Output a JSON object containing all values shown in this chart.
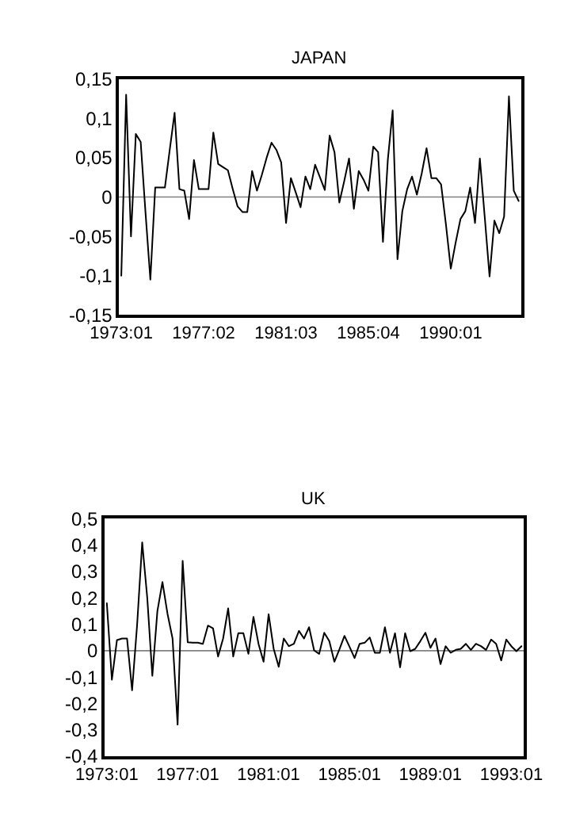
{
  "chart_data": [
    {
      "type": "line",
      "title": "JAPAN",
      "categories": [
        "1973:01",
        null,
        null,
        null,
        null,
        null,
        null,
        null,
        null,
        null,
        null,
        null,
        null,
        null,
        null,
        null,
        null,
        "1977:02",
        null,
        null,
        null,
        null,
        null,
        null,
        null,
        null,
        null,
        null,
        null,
        null,
        null,
        null,
        null,
        null,
        "1981:03",
        null,
        null,
        null,
        null,
        null,
        null,
        null,
        null,
        null,
        null,
        null,
        null,
        null,
        null,
        null,
        null,
        "1985:04",
        null,
        null,
        null,
        null,
        null,
        null,
        null,
        null,
        null,
        null,
        null,
        null,
        null,
        null,
        null,
        null,
        "1990:01",
        null,
        null,
        null,
        null,
        null,
        null,
        null,
        null,
        null,
        null,
        null,
        null,
        null,
        null
      ],
      "series": [
        {
          "color": "#000000",
          "values": [
            -0.1,
            0.13,
            -0.05,
            0.08,
            0.07,
            -0.02,
            -0.105,
            0.012,
            0.012,
            0.012,
            0.06,
            0.107,
            0.01,
            0.008,
            -0.028,
            0.047,
            0.01,
            0.01,
            0.01,
            0.082,
            0.042,
            0.038,
            0.034,
            0.01,
            -0.012,
            -0.019,
            -0.019,
            0.033,
            0.008,
            0.028,
            0.05,
            0.069,
            0.06,
            0.044,
            -0.033,
            0.024,
            0.006,
            -0.013,
            0.026,
            0.01,
            0.041,
            0.025,
            0.009,
            0.078,
            0.057,
            -0.007,
            0.02,
            0.049,
            -0.015,
            0.033,
            0.022,
            0.008,
            0.064,
            0.057,
            -0.057,
            0.047,
            0.11,
            -0.079,
            -0.018,
            0.01,
            0.026,
            0.003,
            0.03,
            0.062,
            0.024,
            0.024,
            0.016,
            -0.035,
            -0.091,
            -0.058,
            -0.028,
            -0.018,
            0.012,
            -0.033,
            0.049,
            -0.025,
            -0.101,
            -0.03,
            -0.046,
            -0.025,
            0.128,
            0.008,
            -0.005
          ]
        }
      ],
      "ylim": [
        -0.15,
        0.15
      ],
      "yticks": [
        {
          "value": -0.15,
          "label": "-0,15"
        },
        {
          "value": -0.1,
          "label": "-0,1"
        },
        {
          "value": -0.05,
          "label": "-0,05"
        },
        {
          "value": 0,
          "label": "0"
        },
        {
          "value": 0.05,
          "label": "0,05"
        },
        {
          "value": 0.1,
          "label": "0,1"
        },
        {
          "value": 0.15,
          "label": "0,15"
        }
      ],
      "ref_lines": [
        {
          "axis": "y",
          "value": 0,
          "color": "#808080"
        }
      ]
    },
    {
      "type": "line",
      "title": "UK",
      "categories": [
        "1973:01",
        null,
        null,
        null,
        null,
        null,
        null,
        null,
        null,
        null,
        null,
        null,
        null,
        null,
        null,
        null,
        "1977:01",
        null,
        null,
        null,
        null,
        null,
        null,
        null,
        null,
        null,
        null,
        null,
        null,
        null,
        null,
        null,
        "1981:01",
        null,
        null,
        null,
        null,
        null,
        null,
        null,
        null,
        null,
        null,
        null,
        null,
        null,
        null,
        null,
        "1985:01",
        null,
        null,
        null,
        null,
        null,
        null,
        null,
        null,
        null,
        null,
        null,
        null,
        null,
        null,
        null,
        "1989:01",
        null,
        null,
        null,
        null,
        null,
        null,
        null,
        null,
        null,
        null,
        null,
        null,
        null,
        null,
        null,
        "1993:01",
        null,
        null
      ],
      "series": [
        {
          "color": "#000000",
          "values": [
            0.18,
            -0.11,
            0.04,
            0.046,
            0.046,
            -0.15,
            0.1,
            0.41,
            0.2,
            -0.095,
            0.15,
            0.26,
            0.14,
            0.046,
            -0.28,
            0.34,
            0.032,
            0.03,
            0.03,
            0.026,
            0.095,
            0.085,
            -0.022,
            0.046,
            0.16,
            -0.022,
            0.066,
            0.066,
            -0.012,
            0.128,
            0.026,
            -0.042,
            0.138,
            0.007,
            -0.061,
            0.046,
            0.017,
            0.026,
            0.075,
            0.046,
            0.089,
            0.001,
            -0.012,
            0.068,
            0.036,
            -0.042,
            0.005,
            0.056,
            0.015,
            -0.028,
            0.026,
            0.03,
            0.05,
            -0.008,
            -0.008,
            0.089,
            -0.008,
            0.066,
            -0.063,
            0.066,
            -0.002,
            0.007,
            0.036,
            0.068,
            0.011,
            0.046,
            -0.051,
            0.017,
            -0.008,
            0.003,
            0.007,
            0.026,
            0.003,
            0.026,
            0.017,
            0.003,
            0.042,
            0.026,
            -0.037,
            0.042,
            0.017,
            -0.002,
            0.017
          ]
        }
      ],
      "ylim": [
        -0.4,
        0.5
      ],
      "yticks": [
        {
          "value": -0.4,
          "label": "-0,4"
        },
        {
          "value": -0.3,
          "label": "-0,3"
        },
        {
          "value": -0.2,
          "label": "-0,2"
        },
        {
          "value": -0.1,
          "label": "-0,1"
        },
        {
          "value": 0,
          "label": "0"
        },
        {
          "value": 0.1,
          "label": "0,1"
        },
        {
          "value": 0.2,
          "label": "0,2"
        },
        {
          "value": 0.3,
          "label": "0,3"
        },
        {
          "value": 0.4,
          "label": "0,4"
        },
        {
          "value": 0.5,
          "label": "0,5"
        }
      ],
      "ref_lines": [
        {
          "axis": "y",
          "value": 0,
          "color": "#808080"
        }
      ]
    }
  ]
}
